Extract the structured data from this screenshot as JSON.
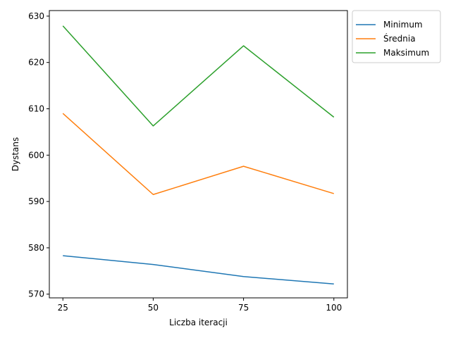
{
  "chart_data": {
    "type": "line",
    "title": "",
    "xlabel": "Liczba iteracji",
    "ylabel": "Dystans",
    "x": [
      25,
      50,
      75,
      100
    ],
    "x_ticks": [
      25,
      50,
      75,
      100
    ],
    "y_ticks": [
      570,
      580,
      590,
      600,
      610,
      620,
      630
    ],
    "xlim": [
      21.25,
      103.75
    ],
    "ylim": [
      569.2,
      631.2
    ],
    "grid": false,
    "legend_placement": "outside upper right",
    "series": [
      {
        "name": "Minimum",
        "color": "#1f77b4",
        "values": [
          578.3,
          576.4,
          573.8,
          572.2
        ]
      },
      {
        "name": "Średnia",
        "color": "#ff7f0e",
        "values": [
          609.0,
          591.5,
          597.6,
          591.7
        ]
      },
      {
        "name": "Maksimum",
        "color": "#2ca02c",
        "values": [
          627.9,
          606.3,
          623.6,
          608.2
        ]
      }
    ]
  }
}
